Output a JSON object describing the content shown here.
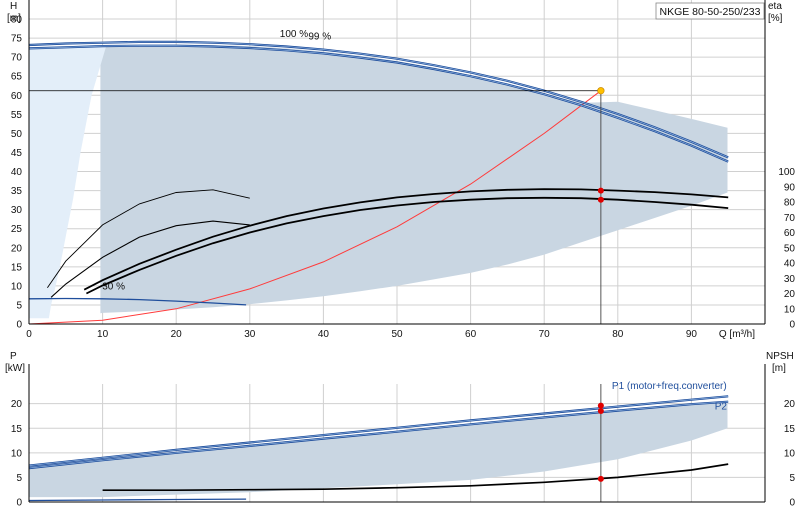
{
  "title": "NKGE 80-50-250/233",
  "colors": {
    "region": "#c9d6e2",
    "regionLight": "#e3eef9",
    "pumpCurve": "#1f4e9c",
    "pumpCurveInner": "#9fc0e6",
    "systemCurve": "#ff3b3b",
    "dutyPoint": "#ffc000",
    "marker": "#e00000",
    "axis": "#000000",
    "grid": "#d0d0d0"
  },
  "chart_data": [
    {
      "type": "line",
      "panel": "head-efficiency",
      "xlabel": "Q [m³/h]",
      "ylabel_line1": "H",
      "ylabel_line2": "[m]",
      "y2label_line1": "eta",
      "y2label_line2": "[%]",
      "xlim": [
        0,
        100
      ],
      "ylim": [
        0,
        85
      ],
      "y2lim": [
        0,
        100
      ],
      "x_ticks": [
        0,
        10,
        20,
        30,
        40,
        50,
        60,
        70,
        80,
        90
      ],
      "y_ticks": [
        0,
        5,
        10,
        15,
        20,
        25,
        30,
        35,
        40,
        45,
        50,
        55,
        60,
        65,
        70,
        75,
        80
      ],
      "y2_ticks": [
        0,
        10,
        20,
        30,
        40,
        50,
        60,
        70,
        80,
        90,
        100
      ],
      "grid": true,
      "annotations": [
        {
          "text": "100 %",
          "x": 36,
          "y": 75.3
        },
        {
          "text": "99 %",
          "x": 39.5,
          "y": 74.6
        },
        {
          "text": "30 %",
          "x": 11.5,
          "y": 9
        }
      ],
      "duty_point": {
        "x": 77.7,
        "y": 61.2
      },
      "efficiency_markers": [
        {
          "x": 77.7,
          "y": 35.0
        },
        {
          "x": 77.7,
          "y": 32.6
        }
      ],
      "series": [
        {
          "role": "region",
          "x": [
            9.7,
            10.5,
            15,
            20,
            25,
            30,
            35,
            40,
            45,
            50,
            55,
            60,
            65,
            70,
            75,
            80,
            85,
            90,
            94.9,
            94.9,
            90,
            85,
            80,
            75,
            70,
            65,
            60,
            55,
            50,
            45,
            40,
            35,
            30,
            25,
            20,
            15,
            10,
            9.7
          ],
          "y": [
            72.8,
            72.8,
            73.1,
            73.3,
            73.2,
            72.9,
            72.3,
            71.5,
            70.4,
            69.0,
            67.3,
            65.3,
            63.0,
            60.5,
            58.0,
            58.3,
            56.1,
            53.8,
            51.5,
            34.5,
            31.0,
            27.8,
            24.6,
            21.4,
            18.2,
            15.6,
            13.4,
            11.7,
            10.0,
            8.6,
            7.3,
            6.2,
            5.2,
            4.4,
            3.8,
            3.3,
            2.9,
            2.8
          ]
        },
        {
          "role": "region-light",
          "x": [
            0,
            9.7,
            10.5,
            8.5,
            7,
            6,
            5,
            4.2,
            3.5,
            3.0,
            2.7,
            0
          ],
          "y": [
            72.5,
            73.2,
            73.0,
            60,
            45,
            33,
            23,
            15,
            9,
            5,
            1.5,
            1.5
          ]
        },
        {
          "role": "pump-curve-100",
          "name": "100 %",
          "x": [
            0,
            5,
            10,
            15,
            20,
            25,
            30,
            35,
            40,
            45,
            50,
            55,
            60,
            65,
            70,
            75,
            80,
            85,
            90,
            95
          ],
          "y": [
            73.2,
            73.6,
            73.8,
            74.0,
            74.0,
            73.8,
            73.4,
            72.8,
            72.0,
            70.9,
            69.6,
            67.9,
            66.0,
            63.8,
            61.2,
            58.3,
            55.1,
            51.6,
            47.8,
            43.7
          ]
        },
        {
          "role": "pump-curve-99",
          "name": "99 %",
          "x": [
            0,
            5,
            10,
            15,
            20,
            25,
            30,
            35,
            40,
            45,
            50,
            55,
            60,
            65,
            70,
            75,
            80,
            85,
            90,
            95
          ],
          "y": [
            72.3,
            72.6,
            72.9,
            73.0,
            73.0,
            72.8,
            72.4,
            71.8,
            71.0,
            69.9,
            68.6,
            66.9,
            65.0,
            62.8,
            60.3,
            57.4,
            54.1,
            50.6,
            46.8,
            42.6
          ]
        },
        {
          "role": "pump-curve-30",
          "name": "30 %",
          "x": [
            0,
            5,
            10,
            15,
            20,
            25,
            29.5
          ],
          "y": [
            6.6,
            6.7,
            6.6,
            6.4,
            6.0,
            5.5,
            5.0
          ]
        },
        {
          "role": "system-curve",
          "x": [
            0,
            10,
            20,
            30,
            40,
            50,
            60,
            70,
            77.7
          ],
          "y": [
            0,
            1.0,
            4.0,
            9.2,
            16.3,
            25.5,
            36.7,
            50.0,
            61.2
          ]
        },
        {
          "role": "eta-100",
          "x": [
            7.5,
            10,
            15,
            20,
            25,
            30,
            35,
            40,
            45,
            50,
            55,
            60,
            65,
            70,
            75,
            80,
            85,
            90,
            95
          ],
          "y": [
            9.0,
            11.5,
            15.8,
            19.5,
            22.9,
            25.8,
            28.3,
            30.3,
            31.9,
            33.2,
            34.1,
            34.8,
            35.2,
            35.4,
            35.3,
            35.0,
            34.6,
            34.0,
            33.2
          ]
        },
        {
          "role": "eta-99",
          "x": [
            7.8,
            10,
            15,
            20,
            25,
            30,
            35,
            40,
            45,
            50,
            55,
            60,
            65,
            70,
            75,
            80,
            85,
            90,
            95
          ],
          "y": [
            8.0,
            10.1,
            14.2,
            17.9,
            21.2,
            24.0,
            26.4,
            28.3,
            29.9,
            31.1,
            32.0,
            32.6,
            33.0,
            33.1,
            33.0,
            32.6,
            32.0,
            31.3,
            30.4
          ]
        },
        {
          "role": "eta-outer",
          "x": [
            2.5,
            5,
            10,
            15,
            20,
            25,
            30
          ],
          "y": [
            9.5,
            16.5,
            26.0,
            31.5,
            34.5,
            35.2,
            33.0
          ]
        },
        {
          "role": "eta-inner",
          "x": [
            3.0,
            5,
            10,
            15,
            20,
            25,
            30
          ],
          "y": [
            7.0,
            10.5,
            17.5,
            22.8,
            25.8,
            27.0,
            26.0
          ]
        }
      ]
    },
    {
      "type": "line",
      "panel": "power-npsh",
      "ylabel_line1": "P",
      "ylabel_line2": "[kW]",
      "y2label_line1": "NPSH",
      "y2label_line2": "[m]",
      "xlim": [
        0,
        100
      ],
      "ylim": [
        0,
        24
      ],
      "y2lim": [
        0,
        24
      ],
      "y_ticks": [
        0,
        5,
        10,
        15,
        20
      ],
      "y2_ticks": [
        0,
        5,
        10,
        15,
        20
      ],
      "grid": true,
      "annotations": [
        {
          "text": "P1 (motor+freq.converter)",
          "x": 87,
          "y": 23.0
        },
        {
          "text": "P2",
          "x": 94,
          "y": 18.8
        }
      ],
      "markers": [
        {
          "x": 77.7,
          "y": 19.6
        },
        {
          "x": 77.7,
          "y": 18.5
        },
        {
          "x": 77.7,
          "y": 4.7
        }
      ],
      "series": [
        {
          "role": "region",
          "x": [
            0,
            10,
            20,
            30,
            40,
            50,
            60,
            70,
            80,
            90,
            94.9,
            94.9,
            90,
            80,
            70,
            60,
            50,
            40,
            30,
            20,
            10,
            0
          ],
          "y": [
            7.0,
            8.7,
            10.2,
            11.7,
            13.1,
            14.5,
            15.9,
            17.2,
            18.6,
            19.9,
            20.4,
            15.0,
            12.5,
            8.7,
            6.2,
            4.5,
            3.6,
            2.8,
            2.0,
            1.5,
            1.0,
            1.0
          ]
        },
        {
          "name": "P1 (motor+freq.converter)",
          "x": [
            0,
            10,
            20,
            30,
            40,
            50,
            60,
            70,
            80,
            90,
            95
          ],
          "y": [
            7.4,
            9.0,
            10.6,
            12.1,
            13.6,
            15.1,
            16.6,
            18.0,
            19.4,
            20.8,
            21.5
          ]
        },
        {
          "name": "P2",
          "x": [
            0,
            10,
            20,
            30,
            40,
            50,
            60,
            70,
            80,
            90,
            95
          ],
          "y": [
            6.9,
            8.5,
            10.0,
            11.4,
            12.9,
            14.3,
            15.8,
            17.2,
            18.6,
            19.9,
            20.4
          ]
        },
        {
          "role": "npsh",
          "x": [
            10,
            20,
            30,
            40,
            50,
            60,
            70,
            80,
            90,
            95
          ],
          "y": [
            2.4,
            2.4,
            2.5,
            2.6,
            2.9,
            3.3,
            4.0,
            5.0,
            6.5,
            7.7
          ]
        },
        {
          "role": "power-30",
          "x": [
            0,
            10,
            20,
            29.5
          ],
          "y": [
            0.3,
            0.4,
            0.5,
            0.6
          ]
        }
      ]
    }
  ]
}
